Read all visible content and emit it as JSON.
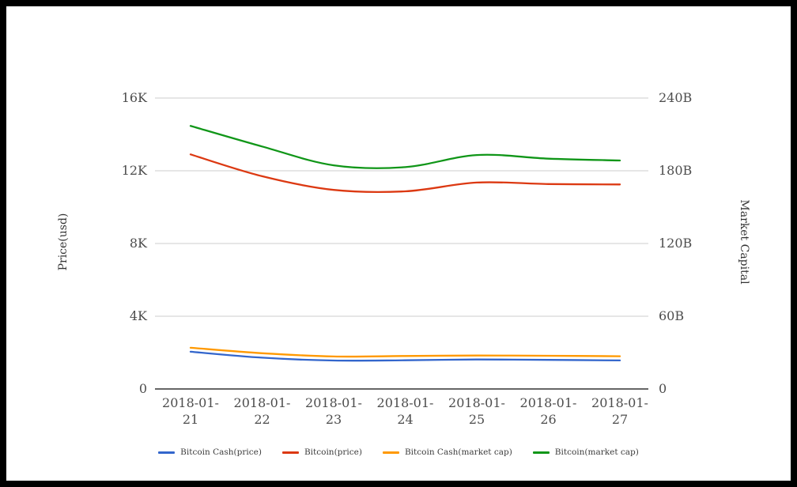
{
  "chart_data": {
    "type": "line",
    "title": "",
    "x": [
      "2018-01-21",
      "2018-01-22",
      "2018-01-23",
      "2018-01-24",
      "2018-01-25",
      "2018-01-26",
      "2018-01-27"
    ],
    "series": [
      {
        "name": "Bitcoin Cash(price)",
        "axis": "left",
        "color": "#3366cc",
        "values": [
          2050,
          1720,
          1565,
          1580,
          1620,
          1600,
          1570
        ]
      },
      {
        "name": "Bitcoin(price)",
        "axis": "left",
        "color": "#dc3912",
        "values": [
          12900,
          11700,
          10950,
          10870,
          11350,
          11270,
          11250
        ]
      },
      {
        "name": "Bitcoin Cash(market cap)",
        "axis": "right",
        "color": "#ff9900",
        "values": [
          34,
          29.5,
          26.8,
          27.2,
          27.6,
          27.4,
          27
        ]
      },
      {
        "name": "Bitcoin(market cap)",
        "axis": "right",
        "color": "#109618",
        "values": [
          217,
          200,
          184.5,
          183,
          193,
          190,
          188.5
        ]
      }
    ],
    "axes": {
      "left": {
        "label": "Price(usd)",
        "range": [
          0,
          16000
        ],
        "ticks": [
          "0",
          "4K",
          "8K",
          "12K",
          "16K"
        ]
      },
      "right": {
        "label": "Market Capital",
        "range_billions": [
          0,
          240
        ],
        "ticks": [
          "0",
          "60B",
          "120B",
          "180B",
          "240B"
        ]
      }
    },
    "legend_position": "bottom",
    "grid": true,
    "grid_color": "#cccccc",
    "baseline_color": "#333333",
    "background": "#ffffff",
    "frame_color": "#000000"
  }
}
